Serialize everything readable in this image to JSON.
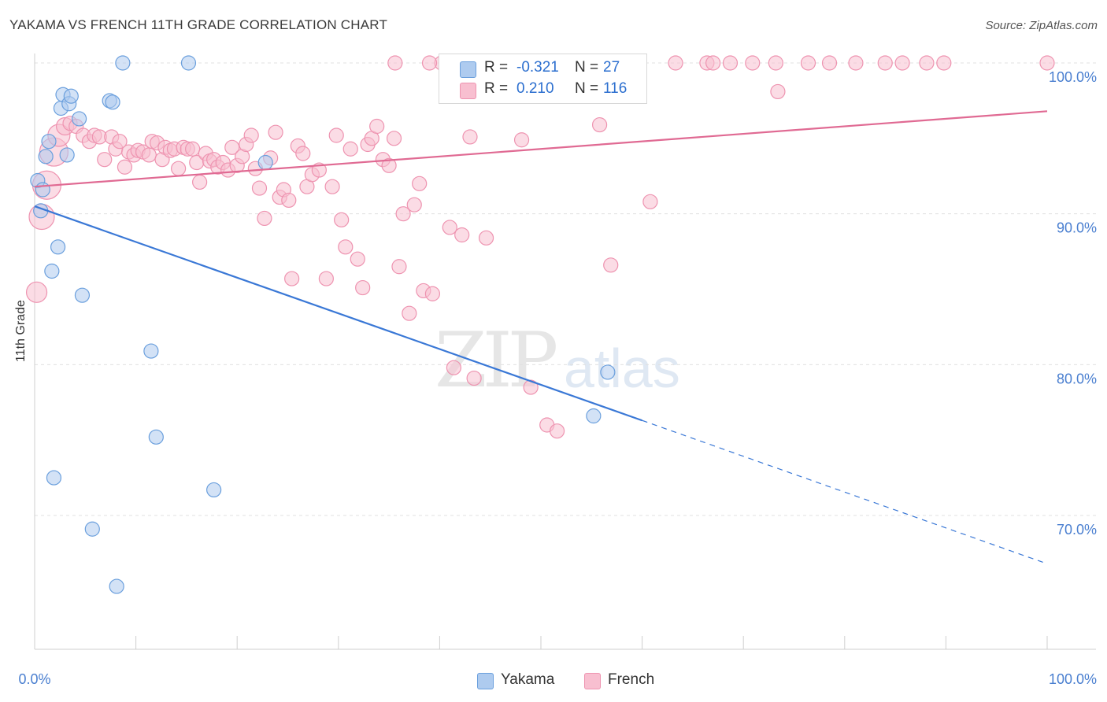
{
  "title": "YAKAMA VS FRENCH 11TH GRADE CORRELATION CHART",
  "source": "Source: ZipAtlas.com",
  "watermark": {
    "zip": "ZIP",
    "atlas": "atlas"
  },
  "legend_stats": [
    {
      "r_label": "R =",
      "r_value": "-0.321",
      "n_label": "N =",
      "n_value": "27"
    },
    {
      "r_label": "R =",
      "r_value": "0.210",
      "n_label": "N =",
      "n_value": "116"
    }
  ],
  "colors": {
    "yakama_fill": "#aecbef",
    "yakama_stroke": "#6a9fdd",
    "yakama_line": "#3a78d6",
    "french_fill": "#f8bfd0",
    "french_stroke": "#ee93b0",
    "french_line": "#e06a93",
    "axis_text": "#4a7fd0",
    "grid": "#e0e0e0"
  },
  "chart_data": {
    "type": "scatter",
    "title": "YAKAMA VS FRENCH 11TH GRADE CORRELATION CHART",
    "xlabel": "",
    "ylabel": "11th Grade",
    "xlim": [
      0,
      100
    ],
    "ylim": [
      60,
      101
    ],
    "x_tick_labels": [
      "0.0%",
      "100.0%"
    ],
    "y_ticks": [
      70,
      80,
      90,
      100
    ],
    "y_tick_labels": [
      "70.0%",
      "80.0%",
      "90.0%",
      "100.0%"
    ],
    "grid": true,
    "legend": "bottom-center",
    "series": [
      {
        "name": "Yakama",
        "points": [
          [
            0.3,
            92.2,
            9
          ],
          [
            0.6,
            90.2,
            9
          ],
          [
            0.8,
            91.6,
            9
          ],
          [
            1.1,
            93.8,
            9
          ],
          [
            1.4,
            94.8,
            9
          ],
          [
            1.7,
            86.2,
            9
          ],
          [
            1.9,
            72.5,
            9
          ],
          [
            2.3,
            87.8,
            9
          ],
          [
            2.6,
            97.0,
            9
          ],
          [
            2.8,
            97.9,
            9
          ],
          [
            3.2,
            93.9,
            9
          ],
          [
            3.4,
            97.3,
            9
          ],
          [
            3.6,
            97.8,
            9
          ],
          [
            4.4,
            96.3,
            9
          ],
          [
            4.7,
            84.6,
            9
          ],
          [
            5.7,
            69.1,
            9
          ],
          [
            7.4,
            97.5,
            9
          ],
          [
            7.7,
            97.4,
            9
          ],
          [
            8.1,
            65.3,
            9
          ],
          [
            8.7,
            100.0,
            9
          ],
          [
            11.5,
            80.9,
            9
          ],
          [
            12.0,
            75.2,
            9
          ],
          [
            15.2,
            100.0,
            9
          ],
          [
            17.7,
            71.7,
            9
          ],
          [
            22.8,
            93.4,
            9
          ],
          [
            55.2,
            76.6,
            9
          ],
          [
            56.6,
            79.5,
            9
          ]
        ]
      },
      {
        "name": "French",
        "points": [
          [
            0.2,
            84.8,
            13
          ],
          [
            0.7,
            89.8,
            16
          ],
          [
            1.2,
            91.9,
            18
          ],
          [
            1.9,
            94.1,
            18
          ],
          [
            2.4,
            95.2,
            14
          ],
          [
            3.0,
            95.8,
            11
          ],
          [
            3.5,
            96.0,
            9
          ],
          [
            4.1,
            95.8,
            9
          ],
          [
            4.8,
            95.2,
            9
          ],
          [
            5.4,
            94.8,
            9
          ],
          [
            5.9,
            95.2,
            9
          ],
          [
            6.4,
            95.1,
            9
          ],
          [
            6.9,
            93.6,
            9
          ],
          [
            7.6,
            95.1,
            9
          ],
          [
            8.0,
            94.3,
            9
          ],
          [
            8.4,
            94.8,
            9
          ],
          [
            8.9,
            93.1,
            9
          ],
          [
            9.3,
            94.1,
            9
          ],
          [
            9.8,
            93.9,
            9
          ],
          [
            10.2,
            94.2,
            9
          ],
          [
            10.7,
            94.1,
            9
          ],
          [
            11.3,
            93.9,
            9
          ],
          [
            11.6,
            94.8,
            9
          ],
          [
            12.1,
            94.7,
            9
          ],
          [
            12.6,
            93.6,
            9
          ],
          [
            12.9,
            94.4,
            9
          ],
          [
            13.4,
            94.2,
            9
          ],
          [
            13.8,
            94.3,
            9
          ],
          [
            14.2,
            93.0,
            9
          ],
          [
            14.7,
            94.4,
            9
          ],
          [
            15.1,
            94.3,
            9
          ],
          [
            15.6,
            94.3,
            9
          ],
          [
            16.0,
            93.4,
            9
          ],
          [
            16.3,
            92.1,
            9
          ],
          [
            16.9,
            94.0,
            9
          ],
          [
            17.3,
            93.5,
            9
          ],
          [
            17.7,
            93.6,
            9
          ],
          [
            18.1,
            93.1,
            9
          ],
          [
            18.6,
            93.4,
            9
          ],
          [
            19.1,
            92.9,
            9
          ],
          [
            19.5,
            94.4,
            9
          ],
          [
            20.0,
            93.2,
            9
          ],
          [
            20.5,
            93.8,
            9
          ],
          [
            20.9,
            94.6,
            9
          ],
          [
            21.4,
            95.2,
            9
          ],
          [
            21.8,
            93.0,
            9
          ],
          [
            22.2,
            91.7,
            9
          ],
          [
            22.7,
            89.7,
            9
          ],
          [
            23.3,
            93.7,
            9
          ],
          [
            23.8,
            95.4,
            9
          ],
          [
            24.2,
            91.1,
            9
          ],
          [
            24.6,
            91.6,
            9
          ],
          [
            25.1,
            90.9,
            9
          ],
          [
            25.4,
            85.7,
            9
          ],
          [
            26.0,
            94.5,
            9
          ],
          [
            26.5,
            94.0,
            9
          ],
          [
            26.9,
            91.8,
            9
          ],
          [
            27.4,
            92.6,
            9
          ],
          [
            28.1,
            92.9,
            9
          ],
          [
            28.8,
            85.7,
            9
          ],
          [
            29.4,
            91.8,
            9
          ],
          [
            29.8,
            95.2,
            9
          ],
          [
            30.3,
            89.6,
            9
          ],
          [
            30.7,
            87.8,
            9
          ],
          [
            31.2,
            94.3,
            9
          ],
          [
            31.9,
            87.0,
            9
          ],
          [
            32.4,
            85.1,
            9
          ],
          [
            32.9,
            94.6,
            9
          ],
          [
            33.3,
            95.0,
            9
          ],
          [
            33.8,
            95.8,
            9
          ],
          [
            34.4,
            93.6,
            9
          ],
          [
            35.0,
            93.2,
            9
          ],
          [
            35.5,
            95.0,
            9
          ],
          [
            36.0,
            86.5,
            9
          ],
          [
            36.4,
            90.0,
            9
          ],
          [
            37.0,
            83.4,
            9
          ],
          [
            37.5,
            90.6,
            9
          ],
          [
            38.0,
            92.0,
            9
          ],
          [
            38.4,
            84.9,
            9
          ],
          [
            39.3,
            84.7,
            9
          ],
          [
            40.2,
            100.0,
            9
          ],
          [
            41.0,
            89.1,
            9
          ],
          [
            41.4,
            79.8,
            9
          ],
          [
            42.2,
            88.6,
            9
          ],
          [
            43.0,
            95.1,
            9
          ],
          [
            43.4,
            79.1,
            9
          ],
          [
            44.6,
            88.4,
            9
          ],
          [
            46.2,
            100.0,
            9
          ],
          [
            48.1,
            94.9,
            9
          ],
          [
            49.0,
            78.5,
            9
          ],
          [
            50.6,
            76.0,
            9
          ],
          [
            51.6,
            75.6,
            9
          ],
          [
            53.0,
            100.0,
            9
          ],
          [
            55.8,
            95.9,
            9
          ],
          [
            56.9,
            86.6,
            9
          ],
          [
            59.0,
            100.0,
            9
          ],
          [
            60.8,
            90.8,
            9
          ],
          [
            63.3,
            100.0,
            9
          ],
          [
            66.4,
            100.0,
            9
          ],
          [
            67.0,
            100.0,
            9
          ],
          [
            68.7,
            100.0,
            9
          ],
          [
            70.9,
            100.0,
            9
          ],
          [
            73.2,
            100.0,
            9
          ],
          [
            73.4,
            98.1,
            9
          ],
          [
            76.4,
            100.0,
            9
          ],
          [
            78.5,
            100.0,
            9
          ],
          [
            81.1,
            100.0,
            9
          ],
          [
            84.0,
            100.0,
            9
          ],
          [
            85.7,
            100.0,
            9
          ],
          [
            88.1,
            100.0,
            9
          ],
          [
            89.8,
            100.0,
            9
          ],
          [
            100.0,
            100.0,
            9
          ],
          [
            35.6,
            100.0,
            9
          ],
          [
            39.0,
            100.0,
            9
          ],
          [
            43.7,
            100.0,
            9
          ],
          [
            47.1,
            100.0,
            9
          ]
        ]
      }
    ],
    "trendlines": [
      {
        "series": "Yakama",
        "x": [
          0,
          60
        ],
        "y": [
          90.5,
          76.3
        ],
        "dashed_to": [
          100,
          66.8
        ]
      },
      {
        "series": "French",
        "x": [
          0,
          100
        ],
        "y": [
          91.8,
          96.8
        ]
      }
    ]
  }
}
